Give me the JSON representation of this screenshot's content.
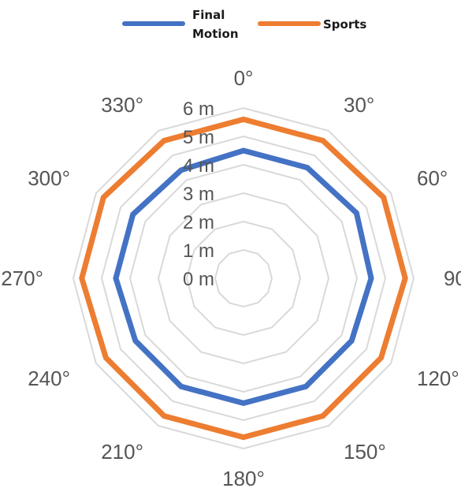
{
  "chart_data": {
    "type": "radar",
    "axis_unit": "m",
    "radial_ticks": [
      "0 m",
      "1 m",
      "2 m",
      "3 m",
      "4 m",
      "5 m",
      "6 m"
    ],
    "radial_range": [
      0,
      6
    ],
    "categories": [
      "0°",
      "30°",
      "60°",
      "90°",
      "120°",
      "150°",
      "180°",
      "210°",
      "240°",
      "270°",
      "300°",
      "330°"
    ],
    "series": [
      {
        "name": "Final\nMotion",
        "color": "#4472c4",
        "values": [
          4.5,
          4.5,
          4.6,
          4.5,
          4.4,
          4.4,
          4.4,
          4.4,
          4.4,
          4.5,
          4.5,
          4.4
        ]
      },
      {
        "name": "Sports",
        "color": "#ed7d31",
        "values": [
          5.6,
          5.6,
          5.7,
          5.7,
          5.6,
          5.6,
          5.6,
          5.6,
          5.6,
          5.7,
          5.7,
          5.6
        ]
      }
    ],
    "legend_position": "top",
    "grid": true,
    "grid_color": "#d9d9d9"
  }
}
